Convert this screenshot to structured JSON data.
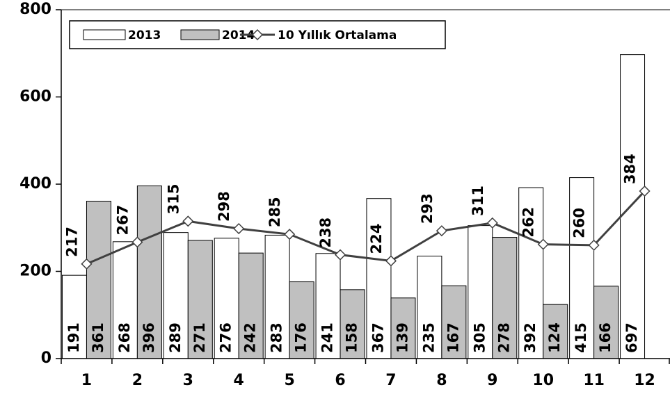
{
  "chart_data": {
    "type": "bar",
    "categories": [
      "1",
      "2",
      "3",
      "4",
      "5",
      "6",
      "7",
      "8",
      "9",
      "10",
      "11",
      "12"
    ],
    "series": [
      {
        "name": "2013",
        "color": "#ffffff",
        "values": [
          191,
          268,
          289,
          276,
          283,
          241,
          367,
          235,
          305,
          392,
          415,
          697
        ]
      },
      {
        "name": "2014",
        "color": "#c0c0c0",
        "values": [
          361,
          396,
          271,
          242,
          176,
          158,
          139,
          167,
          278,
          124,
          166,
          null
        ]
      },
      {
        "name": "10 Yıllık Ortalama",
        "type": "line",
        "color": "#404040",
        "values": [
          217,
          267,
          315,
          298,
          285,
          238,
          224,
          293,
          311,
          262,
          260,
          384
        ]
      }
    ],
    "ylim": [
      0,
      800
    ],
    "yticks": [
      0,
      200,
      400,
      600,
      800
    ],
    "grid": false
  }
}
